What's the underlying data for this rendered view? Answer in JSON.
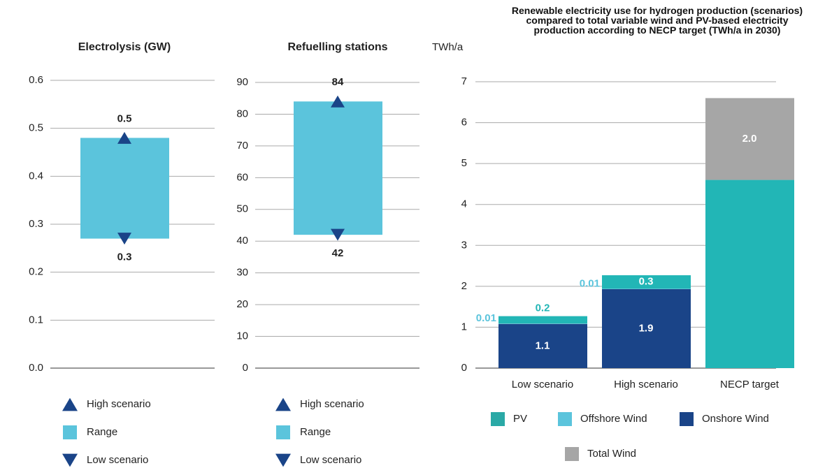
{
  "chart_data": [
    {
      "type": "range",
      "title": "Electrolysis (GW)",
      "ylim": [
        0,
        0.6
      ],
      "yticks": [
        {
          "value": 0,
          "label": "0.0"
        },
        0.1,
        0.2,
        0.3,
        0.4,
        0.5,
        0.6
      ],
      "grid": true,
      "series": [
        {
          "name": "High scenario",
          "color": "#1a4488",
          "values": [
            0.48
          ],
          "value_labels": [
            "0.5"
          ]
        },
        {
          "name": "Range",
          "color": "#5bc4dc"
        },
        {
          "name": "Low scenario",
          "color": "#1a4488",
          "values": [
            0.27
          ],
          "value_labels": [
            "0.3"
          ]
        }
      ]
    },
    {
      "type": "range",
      "title": "Refuelling stations",
      "ylim": [
        0,
        90
      ],
      "yticks": [
        0,
        10,
        20,
        30,
        40,
        50,
        60,
        70,
        80,
        90
      ],
      "grid": true,
      "series": [
        {
          "name": "High scenario",
          "color": "#1a4488",
          "values": [
            84
          ]
        },
        {
          "name": "Range",
          "color": "#5bc4dc"
        },
        {
          "name": "Low scenario",
          "color": "#1a4488",
          "values": [
            42
          ]
        }
      ]
    },
    {
      "type": "stacked_bar",
      "title": "Renewable electricity use for hydrogen production (scenarios) compared to total variable wind and PV-based electricity production according to NECP target (TWh/a in 2030)",
      "y_label": "TWh/a",
      "categories": [
        "Low scenario",
        "High scenario",
        "NECP target"
      ],
      "ylim": [
        0,
        7
      ],
      "yticks": [
        0,
        1,
        2,
        3,
        4,
        5,
        6,
        7
      ],
      "grid": true,
      "series": [
        {
          "name": "Onshore Wind",
          "color": "#1a4488",
          "values": [
            1.08,
            1.93,
            null
          ],
          "value_labels": [
            "1.1",
            "1.9",
            null
          ]
        },
        {
          "name": "Offshore Wind",
          "color": "#5bc4dc",
          "values": [
            0.01,
            0.01,
            null
          ],
          "value_labels": [
            "0.01",
            "0.01",
            null
          ]
        },
        {
          "name": "PV",
          "color": "#22b6b6",
          "values": [
            0.18,
            0.33,
            4.6
          ],
          "value_labels": [
            "0.2",
            "0.3",
            null
          ]
        },
        {
          "name": "Total Wind",
          "color": "#a6a6a6",
          "values": [
            null,
            null,
            2
          ],
          "value_labels": [
            null,
            null,
            "2.0"
          ]
        }
      ]
    }
  ]
}
